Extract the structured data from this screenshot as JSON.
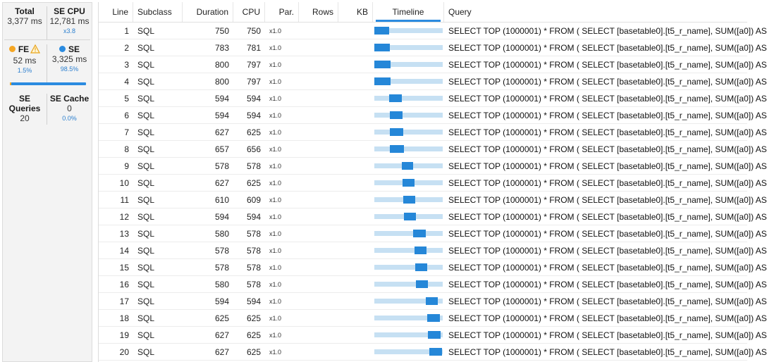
{
  "metrics": {
    "total": {
      "label": "Total",
      "value": "3,377 ms"
    },
    "se_cpu": {
      "label": "SE CPU",
      "value": "12,781 ms",
      "sub": "x3.8"
    },
    "fe": {
      "label": "FE",
      "value": "52 ms",
      "sub": "1.5%",
      "dot_color": "#f5a623",
      "icon": "warning-icon"
    },
    "se": {
      "label": "SE",
      "value": "3,325 ms",
      "sub": "98.5%",
      "dot_color": "#2b8be0"
    },
    "fe_se_split": 0.015,
    "se_queries": {
      "label": "SE Queries",
      "value": "20"
    },
    "se_cache": {
      "label": "SE Cache",
      "value": "0",
      "sub": "0.0%"
    }
  },
  "columns": {
    "line": "Line",
    "subclass": "Subclass",
    "duration": "Duration",
    "cpu": "CPU",
    "par": "Par.",
    "rows": "Rows",
    "kb": "KB",
    "timeline": "Timeline",
    "query": "Query"
  },
  "rows": [
    {
      "line": "1",
      "subclass": "SQL",
      "duration": "750",
      "cpu": "750",
      "par": "x1.0",
      "rows": "",
      "kb": "",
      "tl_start": 0.0,
      "tl_end": 0.22,
      "query": "SELECT TOP (1000001) * FROM ( SELECT [basetable0].[t5_r_name], SUM([a0]) AS"
    },
    {
      "line": "2",
      "subclass": "SQL",
      "duration": "783",
      "cpu": "781",
      "par": "x1.0",
      "rows": "",
      "kb": "",
      "tl_start": 0.0,
      "tl_end": 0.23,
      "query": "SELECT TOP (1000001) * FROM ( SELECT [basetable0].[t5_r_name], SUM([a0]) AS"
    },
    {
      "line": "3",
      "subclass": "SQL",
      "duration": "800",
      "cpu": "797",
      "par": "x1.0",
      "rows": "",
      "kb": "",
      "tl_start": 0.0,
      "tl_end": 0.24,
      "query": "SELECT TOP (1000001) * FROM ( SELECT [basetable0].[t5_r_name], SUM([a0]) AS"
    },
    {
      "line": "4",
      "subclass": "SQL",
      "duration": "800",
      "cpu": "797",
      "par": "x1.0",
      "rows": "",
      "kb": "",
      "tl_start": 0.0,
      "tl_end": 0.24,
      "query": "SELECT TOP (1000001) * FROM ( SELECT [basetable0].[t5_r_name], SUM([a0]) AS"
    },
    {
      "line": "5",
      "subclass": "SQL",
      "duration": "594",
      "cpu": "594",
      "par": "x1.0",
      "rows": "",
      "kb": "",
      "tl_start": 0.22,
      "tl_end": 0.4,
      "query": "SELECT TOP (1000001) * FROM ( SELECT [basetable0].[t5_r_name], SUM([a0]) AS"
    },
    {
      "line": "6",
      "subclass": "SQL",
      "duration": "594",
      "cpu": "594",
      "par": "x1.0",
      "rows": "",
      "kb": "",
      "tl_start": 0.23,
      "tl_end": 0.41,
      "query": "SELECT TOP (1000001) * FROM ( SELECT [basetable0].[t5_r_name], SUM([a0]) AS"
    },
    {
      "line": "7",
      "subclass": "SQL",
      "duration": "627",
      "cpu": "625",
      "par": "x1.0",
      "rows": "",
      "kb": "",
      "tl_start": 0.23,
      "tl_end": 0.42,
      "query": "SELECT TOP (1000001) * FROM ( SELECT [basetable0].[t5_r_name], SUM([a0]) AS"
    },
    {
      "line": "8",
      "subclass": "SQL",
      "duration": "657",
      "cpu": "656",
      "par": "x1.0",
      "rows": "",
      "kb": "",
      "tl_start": 0.23,
      "tl_end": 0.43,
      "query": "SELECT TOP (1000001) * FROM ( SELECT [basetable0].[t5_r_name], SUM([a0]) AS"
    },
    {
      "line": "9",
      "subclass": "SQL",
      "duration": "578",
      "cpu": "578",
      "par": "x1.0",
      "rows": "",
      "kb": "",
      "tl_start": 0.4,
      "tl_end": 0.57,
      "query": "SELECT TOP (1000001) * FROM ( SELECT [basetable0].[t5_r_name], SUM([a0]) AS"
    },
    {
      "line": "10",
      "subclass": "SQL",
      "duration": "627",
      "cpu": "625",
      "par": "x1.0",
      "rows": "",
      "kb": "",
      "tl_start": 0.41,
      "tl_end": 0.59,
      "query": "SELECT TOP (1000001) * FROM ( SELECT [basetable0].[t5_r_name], SUM([a0]) AS"
    },
    {
      "line": "11",
      "subclass": "SQL",
      "duration": "610",
      "cpu": "609",
      "par": "x1.0",
      "rows": "",
      "kb": "",
      "tl_start": 0.42,
      "tl_end": 0.6,
      "query": "SELECT TOP (1000001) * FROM ( SELECT [basetable0].[t5_r_name], SUM([a0]) AS"
    },
    {
      "line": "12",
      "subclass": "SQL",
      "duration": "594",
      "cpu": "594",
      "par": "x1.0",
      "rows": "",
      "kb": "",
      "tl_start": 0.43,
      "tl_end": 0.61,
      "query": "SELECT TOP (1000001) * FROM ( SELECT [basetable0].[t5_r_name], SUM([a0]) AS"
    },
    {
      "line": "13",
      "subclass": "SQL",
      "duration": "580",
      "cpu": "578",
      "par": "x1.0",
      "rows": "",
      "kb": "",
      "tl_start": 0.57,
      "tl_end": 0.75,
      "query": "SELECT TOP (1000001) * FROM ( SELECT [basetable0].[t5_r_name], SUM([a0]) AS"
    },
    {
      "line": "14",
      "subclass": "SQL",
      "duration": "578",
      "cpu": "578",
      "par": "x1.0",
      "rows": "",
      "kb": "",
      "tl_start": 0.59,
      "tl_end": 0.76,
      "query": "SELECT TOP (1000001) * FROM ( SELECT [basetable0].[t5_r_name], SUM([a0]) AS"
    },
    {
      "line": "15",
      "subclass": "SQL",
      "duration": "578",
      "cpu": "578",
      "par": "x1.0",
      "rows": "",
      "kb": "",
      "tl_start": 0.6,
      "tl_end": 0.77,
      "query": "SELECT TOP (1000001) * FROM ( SELECT [basetable0].[t5_r_name], SUM([a0]) AS"
    },
    {
      "line": "16",
      "subclass": "SQL",
      "duration": "580",
      "cpu": "578",
      "par": "x1.0",
      "rows": "",
      "kb": "",
      "tl_start": 0.61,
      "tl_end": 0.78,
      "query": "SELECT TOP (1000001) * FROM ( SELECT [basetable0].[t5_r_name], SUM([a0]) AS"
    },
    {
      "line": "17",
      "subclass": "SQL",
      "duration": "594",
      "cpu": "594",
      "par": "x1.0",
      "rows": "",
      "kb": "",
      "tl_start": 0.75,
      "tl_end": 0.93,
      "query": "SELECT TOP (1000001) * FROM ( SELECT [basetable0].[t5_r_name], SUM([a0]) AS"
    },
    {
      "line": "18",
      "subclass": "SQL",
      "duration": "625",
      "cpu": "625",
      "par": "x1.0",
      "rows": "",
      "kb": "",
      "tl_start": 0.77,
      "tl_end": 0.96,
      "query": "SELECT TOP (1000001) * FROM ( SELECT [basetable0].[t5_r_name], SUM([a0]) AS"
    },
    {
      "line": "19",
      "subclass": "SQL",
      "duration": "627",
      "cpu": "625",
      "par": "x1.0",
      "rows": "",
      "kb": "",
      "tl_start": 0.78,
      "tl_end": 0.97,
      "query": "SELECT TOP (1000001) * FROM ( SELECT [basetable0].[t5_r_name], SUM([a0]) AS"
    },
    {
      "line": "20",
      "subclass": "SQL",
      "duration": "627",
      "cpu": "625",
      "par": "x1.0",
      "rows": "",
      "kb": "",
      "tl_start": 0.8,
      "tl_end": 0.99,
      "query": "SELECT TOP (1000001) * FROM ( SELECT [basetable0].[t5_r_name], SUM([a0]) AS"
    }
  ],
  "colors": {
    "accent": "#2b8be0",
    "timeline_fill": "#2587d8",
    "timeline_bg": "#c6e0f3",
    "fe_dot": "#f5a623"
  }
}
